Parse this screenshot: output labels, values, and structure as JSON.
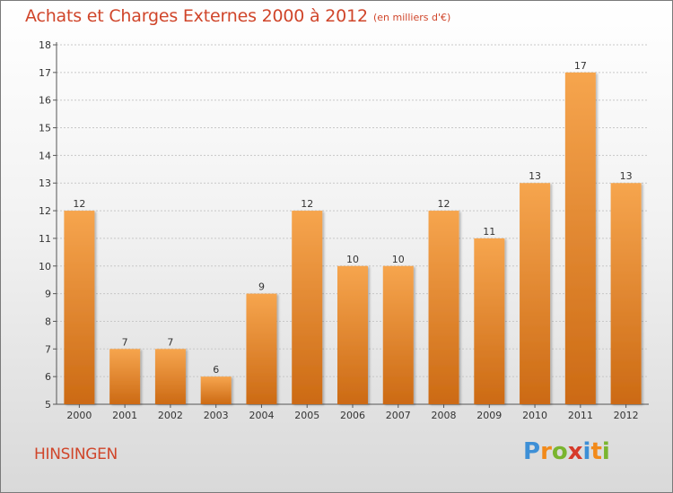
{
  "chart_data": {
    "type": "bar",
    "title": "Achats et Charges Externes 2000 à 2012",
    "subtitle": "(en milliers d'€)",
    "categories": [
      "2000",
      "2001",
      "2002",
      "2003",
      "2004",
      "2005",
      "2006",
      "2007",
      "2008",
      "2009",
      "2010",
      "2011",
      "2012"
    ],
    "values": [
      12,
      7,
      7,
      6,
      9,
      12,
      10,
      10,
      12,
      11,
      13,
      17,
      13
    ],
    "ylim": [
      5,
      18
    ],
    "yticks": [
      5,
      6,
      7,
      8,
      9,
      10,
      11,
      12,
      13,
      14,
      15,
      16,
      17,
      18
    ],
    "xlabel": "",
    "ylabel": "",
    "grid": true,
    "bar_color_top": "#f6a54e",
    "bar_color_bottom": "#cc6a14"
  },
  "footer": {
    "commune": "HINSINGEN",
    "brand_letters": [
      "P",
      "r",
      "o",
      "x",
      "i",
      "t",
      "i"
    ],
    "brand_colors": [
      "#3d8fd6",
      "#f28a1a",
      "#7ab52f",
      "#d63a2a",
      "#3d8fd6",
      "#f28a1a",
      "#7ab52f"
    ]
  }
}
